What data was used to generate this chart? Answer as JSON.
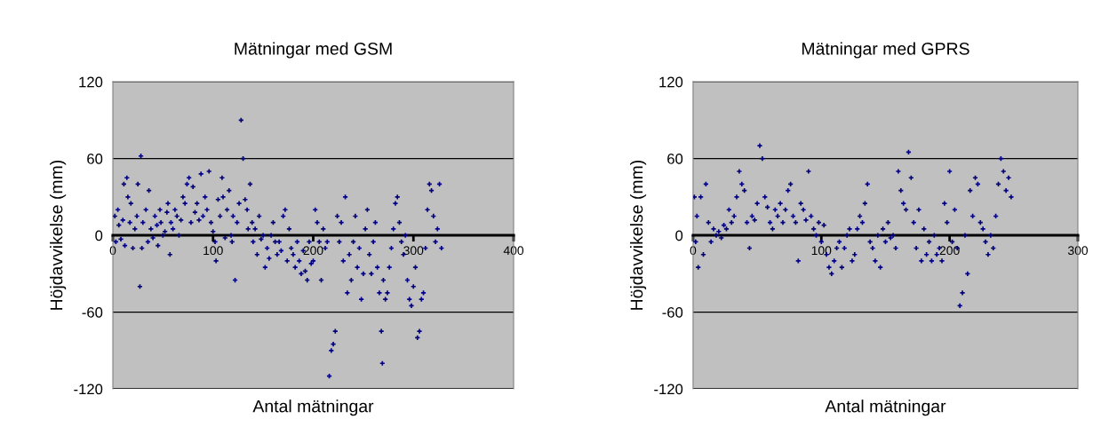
{
  "chart_data": [
    {
      "type": "scatter",
      "title": "Mätningar med GSM",
      "xlabel": "Antal mätningar",
      "ylabel": "Höjdavvikelse (mm)",
      "xlim": [
        0,
        400
      ],
      "ylim": [
        -120,
        120
      ],
      "xticks": [
        0,
        100,
        200,
        300,
        400
      ],
      "yticks": [
        -120,
        -60,
        0,
        60,
        120
      ],
      "grid": "y",
      "marker": "cross",
      "series": [
        {
          "color": "#000080",
          "x": [
            2,
            3,
            5,
            6,
            8,
            10,
            11,
            12,
            14,
            15,
            17,
            18,
            20,
            22,
            24,
            25,
            27,
            28,
            29,
            30,
            33,
            35,
            36,
            38,
            40,
            42,
            44,
            45,
            47,
            48,
            50,
            52,
            54,
            55,
            57,
            58,
            60,
            62,
            64,
            66,
            68,
            70,
            72,
            74,
            76,
            78,
            80,
            82,
            84,
            86,
            88,
            90,
            92,
            94,
            96,
            98,
            100,
            102,
            103,
            105,
            107,
            109,
            110,
            112,
            114,
            116,
            118,
            119,
            120,
            122,
            124,
            126,
            128,
            130,
            132,
            134,
            135,
            137,
            139,
            140,
            142,
            144,
            146,
            148,
            150,
            152,
            154,
            156,
            158,
            160,
            162,
            164,
            166,
            168,
            170,
            172,
            174,
            176,
            178,
            180,
            182,
            184,
            186,
            188,
            190,
            192,
            194,
            196,
            198,
            200,
            202,
            204,
            206,
            208,
            210,
            212,
            214,
            216,
            218,
            220,
            222,
            224,
            226,
            228,
            230,
            232,
            234,
            236,
            238,
            240,
            242,
            244,
            246,
            248,
            250,
            252,
            254,
            256,
            258,
            260,
            262,
            264,
            266,
            268,
            269,
            270,
            272,
            274,
            276,
            278,
            280,
            282,
            284,
            286,
            288,
            290,
            292,
            294,
            296,
            298,
            300,
            302,
            304,
            306,
            308,
            310,
            312,
            314,
            316,
            318,
            320,
            322,
            324,
            326,
            328
          ],
          "values": [
            15,
            -5,
            20,
            8,
            -3,
            12,
            40,
            -8,
            45,
            30,
            10,
            25,
            -10,
            5,
            15,
            40,
            -40,
            62,
            -10,
            10,
            20,
            -5,
            35,
            5,
            -2,
            15,
            8,
            -8,
            20,
            10,
            0,
            3,
            18,
            25,
            -15,
            10,
            5,
            20,
            15,
            0,
            12,
            30,
            25,
            40,
            45,
            10,
            38,
            18,
            25,
            12,
            48,
            15,
            30,
            20,
            50,
            10,
            3,
            -5,
            -20,
            28,
            15,
            45,
            30,
            -2,
            20,
            35,
            0,
            -5,
            15,
            -35,
            10,
            25,
            90,
            60,
            28,
            20,
            5,
            40,
            10,
            -5,
            5,
            -15,
            15,
            -3,
            0,
            -25,
            -10,
            -18,
            0,
            10,
            -5,
            -15,
            -5,
            -12,
            15,
            20,
            -20,
            5,
            -10,
            -15,
            -25,
            -5,
            -20,
            -30,
            -12,
            -28,
            -35,
            -5,
            -22,
            -20,
            20,
            10,
            -5,
            -35,
            5,
            -10,
            -5,
            -110,
            -90,
            -85,
            -75,
            15,
            -5,
            10,
            -20,
            30,
            -45,
            -15,
            -35,
            -5,
            15,
            -25,
            -10,
            -50,
            -30,
            5,
            20,
            -15,
            -30,
            -5,
            10,
            -25,
            -45,
            -75,
            -100,
            -35,
            -50,
            -45,
            -25,
            -10,
            5,
            25,
            30,
            10,
            -5,
            -15,
            0,
            -35,
            -50,
            -55,
            -40,
            -25,
            -80,
            -75,
            -50,
            -45,
            -10,
            20,
            40,
            35,
            15,
            -5,
            5,
            40,
            -10
          ]
        }
      ]
    },
    {
      "type": "scatter",
      "title": "Mätningar med GPRS",
      "xlabel": "Antal mätningar",
      "ylabel": "Höjdavvikelse (mm)",
      "xlim": [
        0,
        300
      ],
      "ylim": [
        -120,
        120
      ],
      "xticks": [
        0,
        100,
        200,
        300
      ],
      "yticks": [
        -120,
        -60,
        0,
        60,
        120
      ],
      "grid": "y",
      "marker": "cross",
      "series": [
        {
          "color": "#000080",
          "x": [
            1,
            2,
            3,
            4,
            6,
            8,
            10,
            12,
            14,
            16,
            18,
            20,
            22,
            24,
            26,
            28,
            30,
            32,
            34,
            36,
            38,
            40,
            42,
            44,
            46,
            48,
            50,
            52,
            54,
            56,
            58,
            60,
            62,
            64,
            66,
            68,
            70,
            72,
            74,
            76,
            78,
            80,
            82,
            84,
            86,
            88,
            90,
            92,
            94,
            96,
            98,
            100,
            102,
            104,
            106,
            108,
            110,
            112,
            114,
            116,
            118,
            120,
            122,
            124,
            126,
            128,
            130,
            132,
            134,
            136,
            138,
            140,
            142,
            144,
            146,
            148,
            150,
            152,
            154,
            156,
            158,
            160,
            162,
            164,
            166,
            168,
            170,
            172,
            174,
            176,
            178,
            180,
            182,
            184,
            186,
            188,
            190,
            192,
            194,
            196,
            198,
            200,
            202,
            204,
            206,
            208,
            210,
            212,
            214,
            216,
            218,
            220,
            222,
            224,
            226,
            228,
            230,
            232,
            234,
            236,
            238,
            240,
            242,
            244,
            246,
            248
          ],
          "values": [
            30,
            -5,
            15,
            -25,
            30,
            -15,
            40,
            10,
            -5,
            5,
            0,
            3,
            -2,
            8,
            5,
            20,
            10,
            15,
            30,
            50,
            40,
            35,
            10,
            -10,
            15,
            12,
            25,
            70,
            60,
            30,
            22,
            10,
            5,
            20,
            15,
            25,
            10,
            20,
            35,
            40,
            15,
            10,
            -20,
            25,
            20,
            12,
            50,
            15,
            5,
            0,
            10,
            -5,
            8,
            -15,
            -25,
            -30,
            -20,
            -10,
            -5,
            -25,
            -10,
            0,
            5,
            -20,
            -15,
            5,
            15,
            10,
            25,
            40,
            -5,
            -10,
            -20,
            0,
            -25,
            5,
            -5,
            10,
            -2,
            0,
            -10,
            50,
            35,
            25,
            20,
            65,
            45,
            10,
            -10,
            20,
            -20,
            5,
            -15,
            -5,
            -20,
            0,
            -15,
            -10,
            -20,
            25,
            10,
            50,
            -5,
            20,
            -10,
            -55,
            -45,
            0,
            -30,
            35,
            15,
            45,
            40,
            10,
            5,
            -5,
            -15,
            0,
            -10,
            15,
            40,
            60,
            50,
            35,
            45,
            30
          ]
        }
      ]
    }
  ]
}
